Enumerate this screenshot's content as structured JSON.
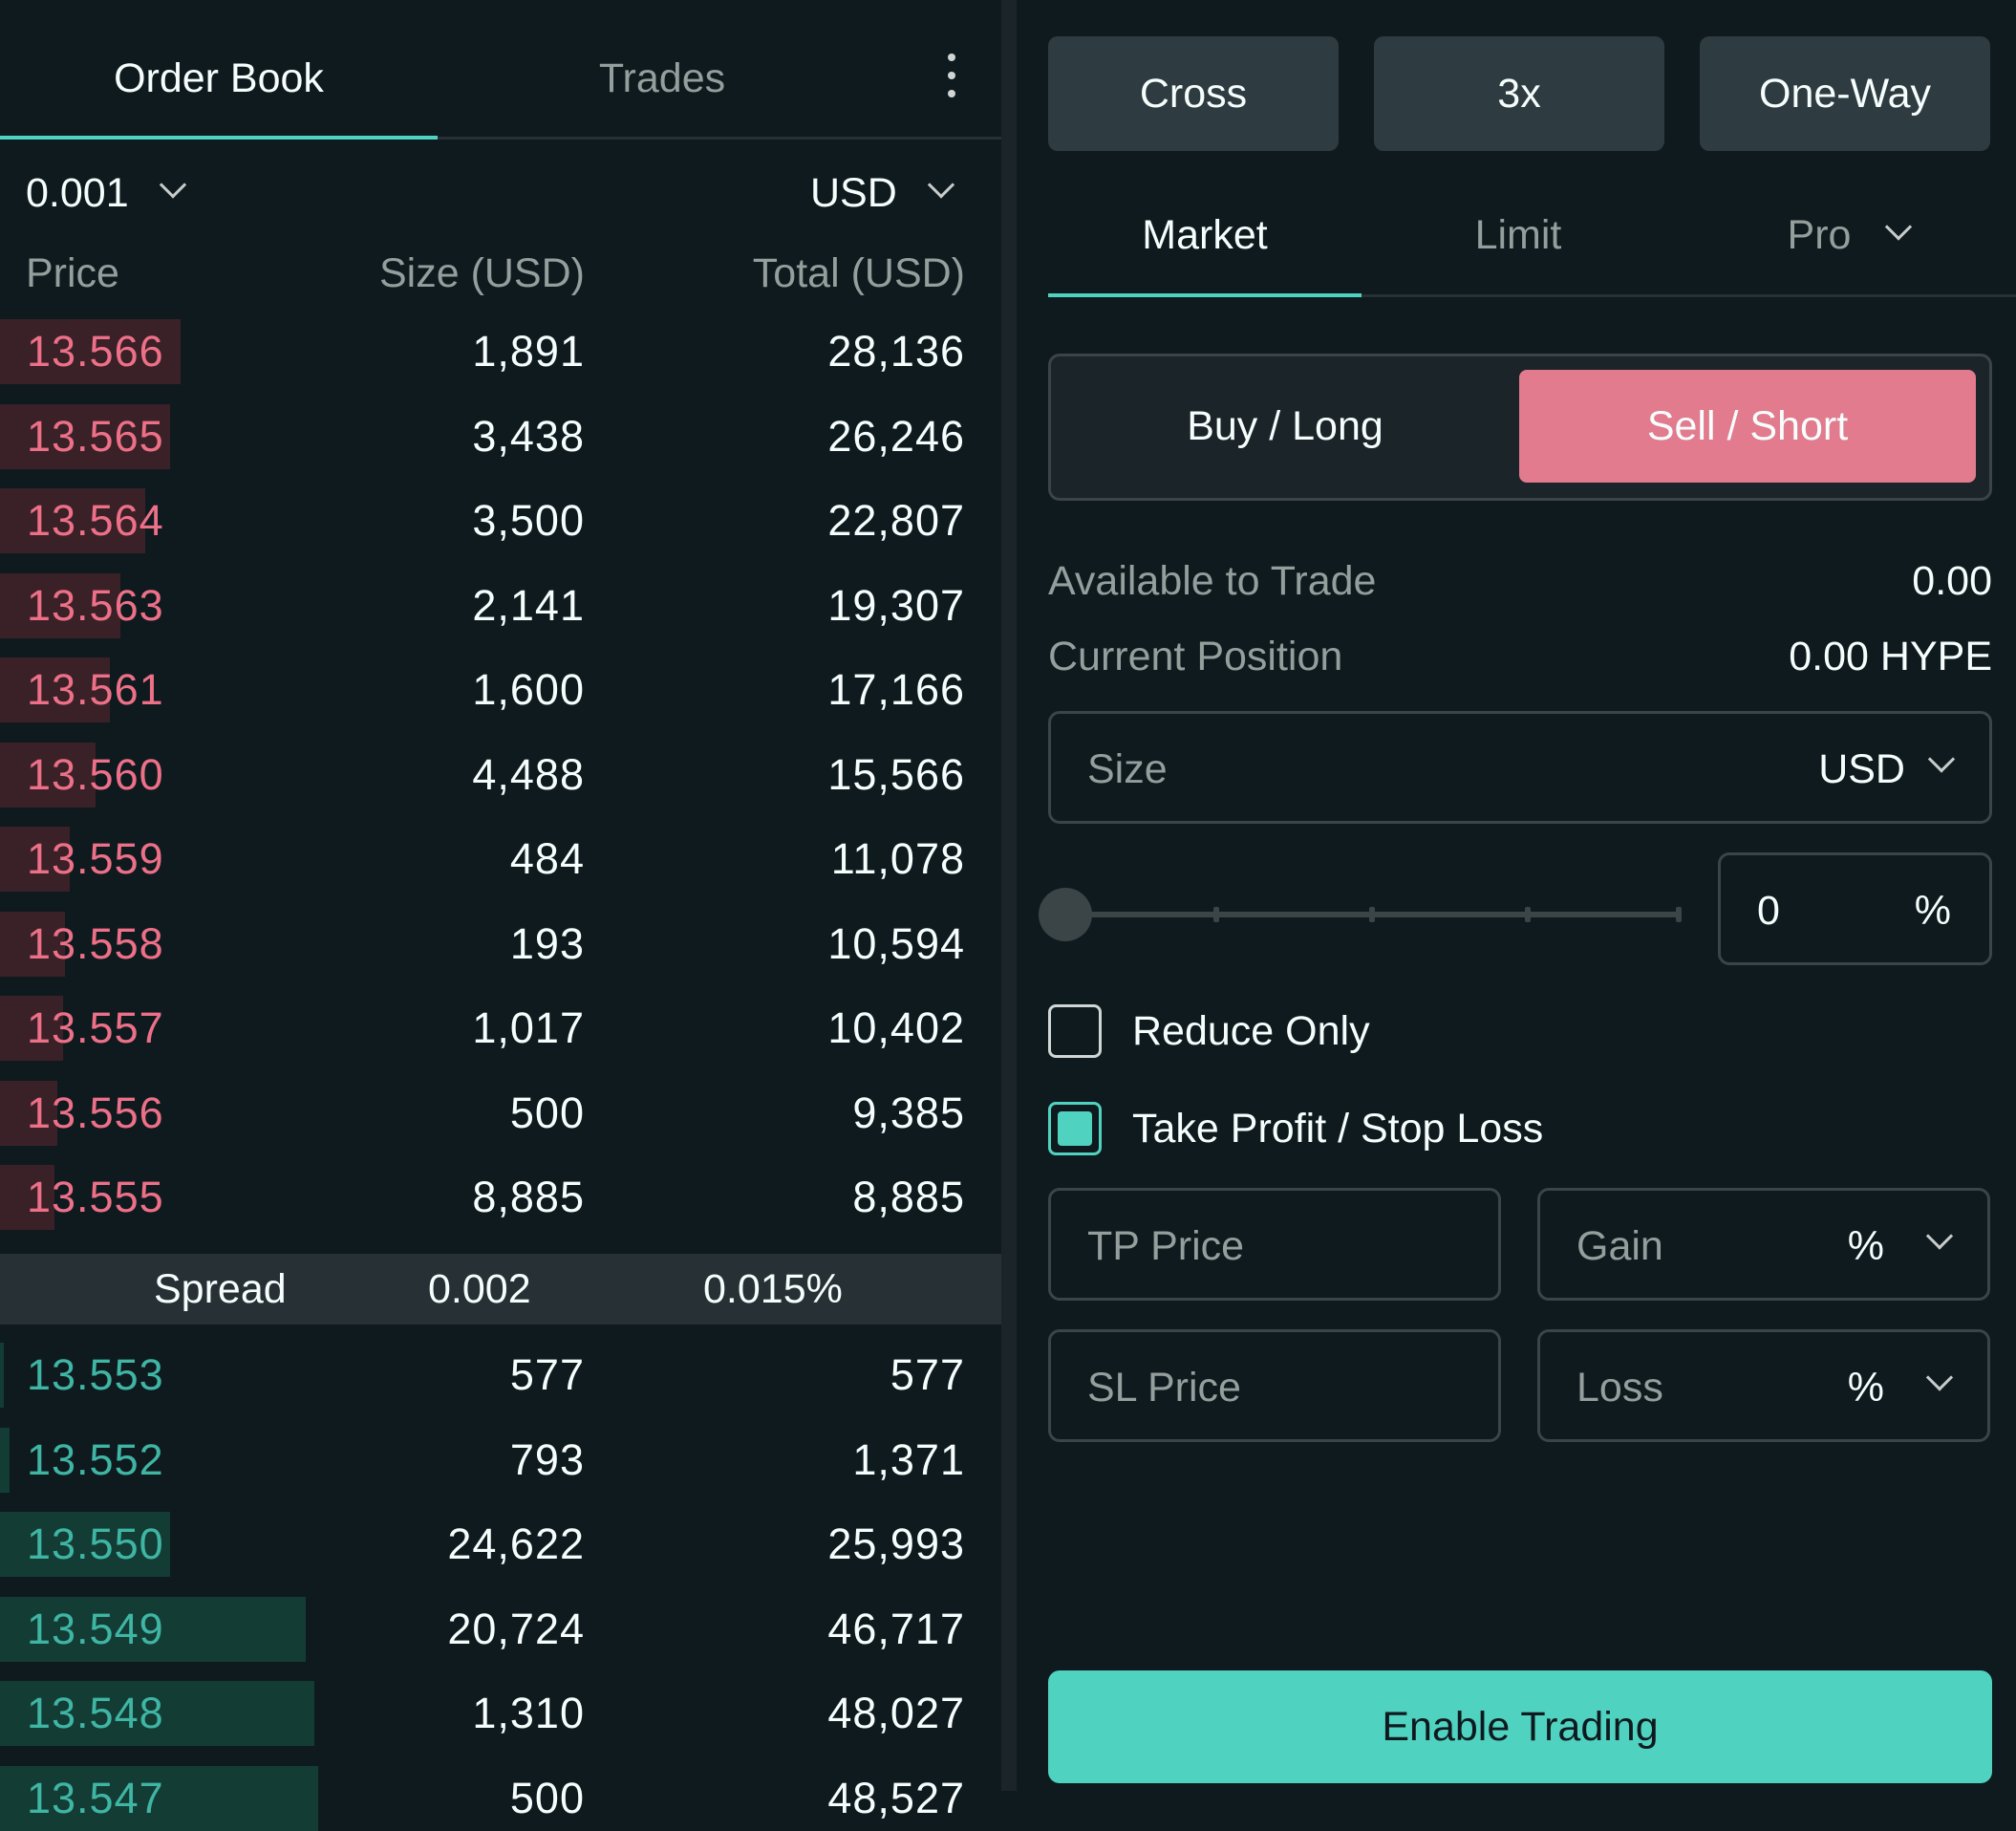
{
  "order_book": {
    "tabs": [
      "Order Book",
      "Trades"
    ],
    "tick_size": "0.001",
    "unit": "USD",
    "columns": [
      "Price",
      "Size (USD)",
      "Total (USD)"
    ],
    "asks": [
      {
        "price": "13.566",
        "size": "1,891",
        "total": "28,136",
        "depth": 0.18
      },
      {
        "price": "13.565",
        "size": "3,438",
        "total": "26,246",
        "depth": 0.17
      },
      {
        "price": "13.564",
        "size": "3,500",
        "total": "22,807",
        "depth": 0.145
      },
      {
        "price": "13.563",
        "size": "2,141",
        "total": "19,307",
        "depth": 0.12
      },
      {
        "price": "13.561",
        "size": "1,600",
        "total": "17,166",
        "depth": 0.11
      },
      {
        "price": "13.560",
        "size": "4,488",
        "total": "15,566",
        "depth": 0.095
      },
      {
        "price": "13.559",
        "size": "484",
        "total": "11,078",
        "depth": 0.07
      },
      {
        "price": "13.558",
        "size": "193",
        "total": "10,594",
        "depth": 0.065
      },
      {
        "price": "13.557",
        "size": "1,017",
        "total": "10,402",
        "depth": 0.063
      },
      {
        "price": "13.556",
        "size": "500",
        "total": "9,385",
        "depth": 0.057
      },
      {
        "price": "13.555",
        "size": "8,885",
        "total": "8,885",
        "depth": 0.054
      }
    ],
    "spread": {
      "label": "Spread",
      "value": "0.002",
      "percent": "0.015%"
    },
    "bids": [
      {
        "price": "13.553",
        "size": "577",
        "total": "577",
        "depth": 0.004
      },
      {
        "price": "13.552",
        "size": "793",
        "total": "1,371",
        "depth": 0.01
      },
      {
        "price": "13.550",
        "size": "24,622",
        "total": "25,993",
        "depth": 0.17
      },
      {
        "price": "13.549",
        "size": "20,724",
        "total": "46,717",
        "depth": 0.305
      },
      {
        "price": "13.548",
        "size": "1,310",
        "total": "48,027",
        "depth": 0.314
      },
      {
        "price": "13.547",
        "size": "500",
        "total": "48,527",
        "depth": 0.318
      }
    ]
  },
  "order_form": {
    "margin_mode": "Cross",
    "leverage": "3x",
    "position_mode": "One-Way",
    "order_types": [
      "Market",
      "Limit",
      "Pro"
    ],
    "side_buy": "Buy / Long",
    "side_sell": "Sell / Short",
    "available_label": "Available to Trade",
    "available_value": "0.00",
    "position_label": "Current Position",
    "position_value": "0.00 HYPE",
    "size_placeholder": "Size",
    "size_unit": "USD",
    "percent_value": "0",
    "percent_sign": "%",
    "slider_fraction": 0,
    "reduce_only_label": "Reduce Only",
    "reduce_only_checked": false,
    "tpsl_label": "Take Profit / Stop Loss",
    "tpsl_checked": true,
    "tp_price_placeholder": "TP Price",
    "gain_placeholder": "Gain",
    "sl_price_placeholder": "SL Price",
    "loss_placeholder": "Loss",
    "enable_label": "Enable Trading"
  },
  "colors": {
    "background": "#0f1a1f",
    "ask_text": "#ed7088",
    "bid_text": "#3fb5a4",
    "accent": "#50d2c1",
    "sell_button": "#e17b8d"
  }
}
